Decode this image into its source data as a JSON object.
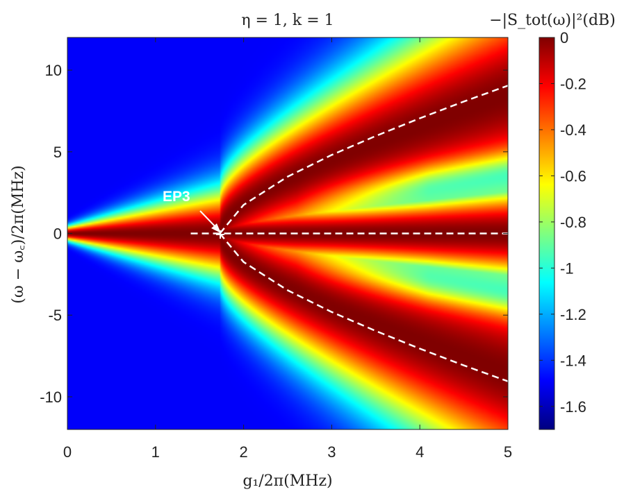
{
  "chart_data": {
    "type": "heatmap",
    "title": "η = 1, k = 1",
    "xlabel": "g₁/2π(MHz)",
    "ylabel": "(ω − ω꜀)/2π(MHz)",
    "xlim": [
      0,
      5
    ],
    "ylim": [
      -12,
      12
    ],
    "x_ticks": [
      "0",
      "1",
      "2",
      "3",
      "4",
      "5"
    ],
    "x_tick_values": [
      0,
      1,
      2,
      3,
      4,
      5
    ],
    "y_ticks": [
      "10",
      "5",
      "0",
      "-5",
      "-10"
    ],
    "y_tick_values": [
      10,
      5,
      0,
      -5,
      -10
    ],
    "grid": false,
    "colormap": "jet",
    "colorbar": {
      "label": "−|S_tot(ω)|²(dB)",
      "range": [
        -1.7,
        0
      ],
      "ticks": [
        "0",
        "-0.2",
        "-0.4",
        "-0.6",
        "-0.8",
        "-1",
        "-1.2",
        "-1.4",
        "-1.6"
      ],
      "tick_values": [
        0,
        -0.2,
        -0.4,
        -0.6,
        -0.8,
        -1.0,
        -1.2,
        -1.4,
        -1.6
      ]
    },
    "dashed_curves": [
      {
        "type": "horizontal",
        "x_start": 1.4,
        "x_end": 5.0,
        "y": 0
      },
      {
        "type": "upper-branch",
        "points": [
          [
            1.73,
            0
          ],
          [
            2.0,
            1.75
          ],
          [
            2.5,
            3.48
          ],
          [
            3.0,
            4.81
          ],
          [
            3.5,
            5.97
          ],
          [
            4.0,
            7.05
          ],
          [
            4.5,
            8.08
          ],
          [
            5.0,
            9.05
          ]
        ]
      },
      {
        "type": "lower-branch",
        "points": [
          [
            1.73,
            0
          ],
          [
            2.0,
            -1.75
          ],
          [
            2.5,
            -3.48
          ],
          [
            3.0,
            -4.81
          ],
          [
            3.5,
            -5.97
          ],
          [
            4.0,
            -7.05
          ],
          [
            4.5,
            -8.08
          ],
          [
            5.0,
            -9.05
          ]
        ]
      }
    ],
    "annotation": {
      "text": "EP3",
      "x": 1.73,
      "y": 0
    },
    "colors": {
      "dashed_line": "#ffffff",
      "axis": "#222222"
    }
  }
}
